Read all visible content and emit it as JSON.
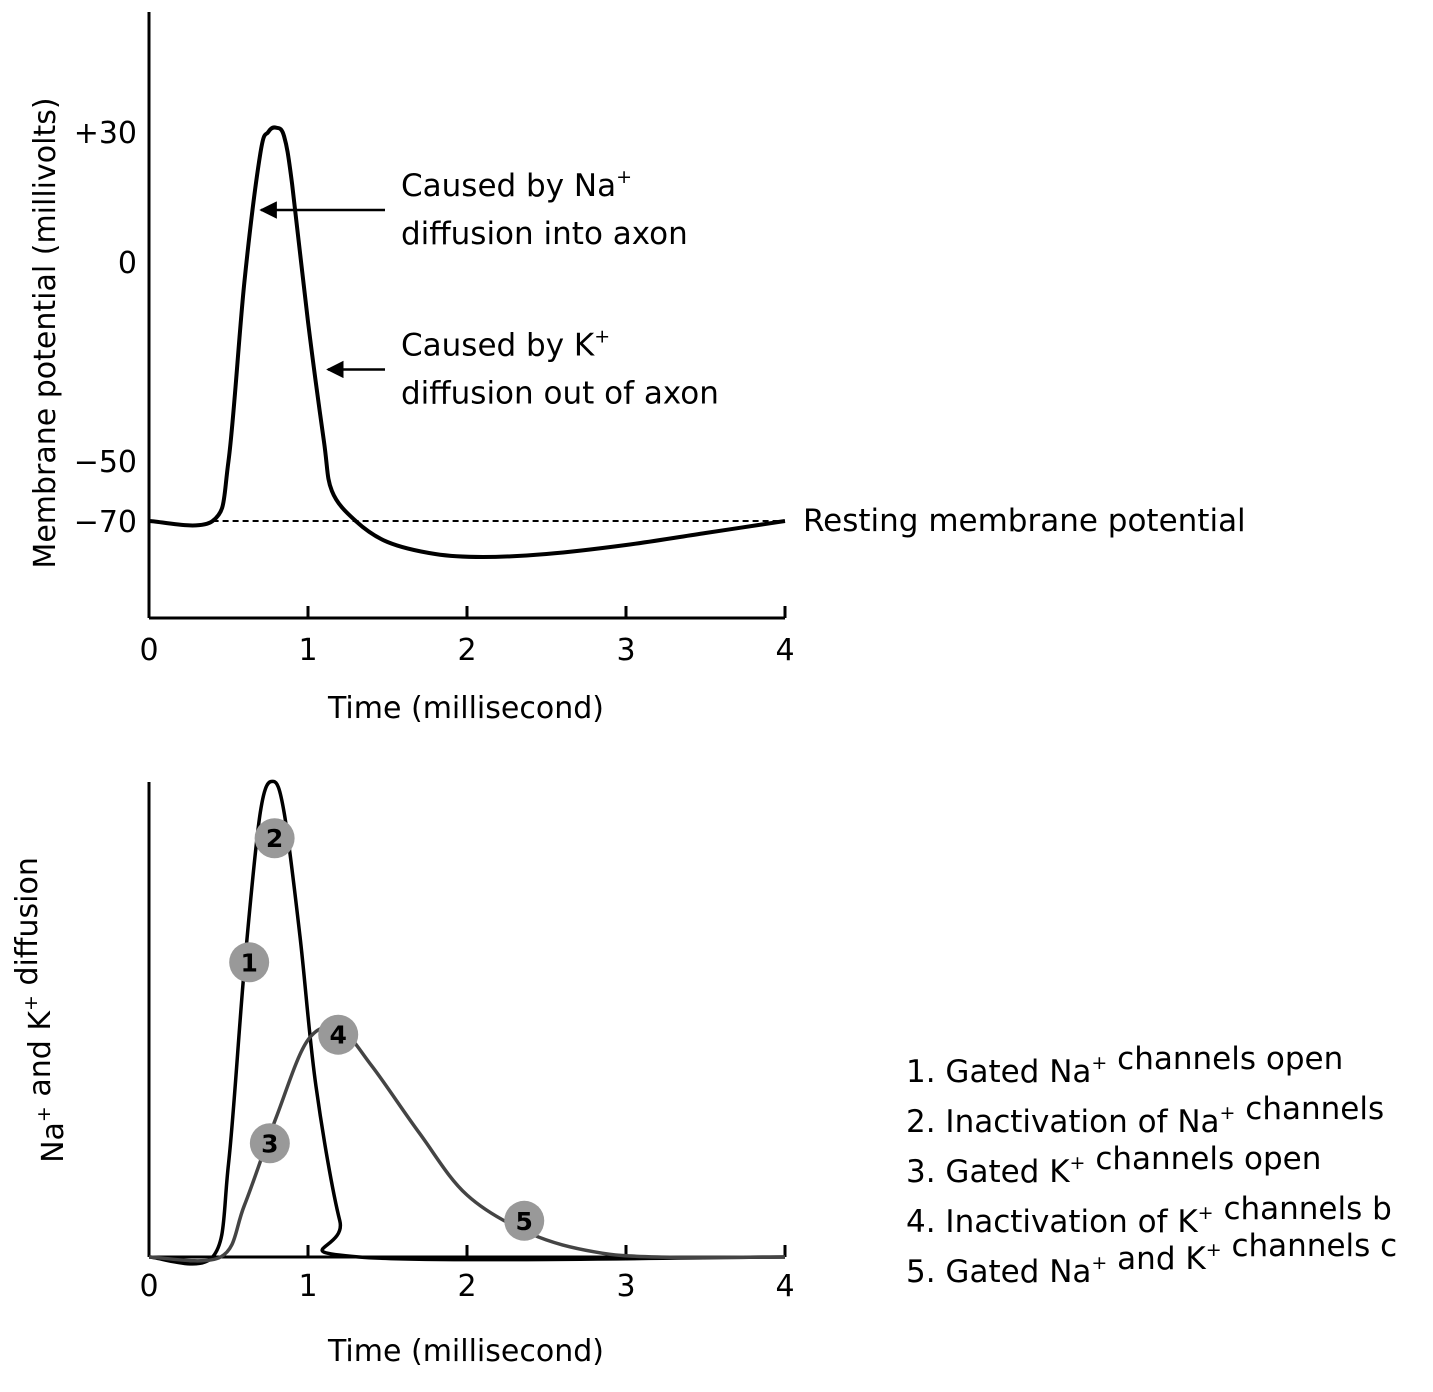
{
  "chart_data": [
    {
      "type": "line",
      "xlabel": "Time (millisecond)",
      "ylabel": "Membrane potential (millivolts)",
      "x_ticks": [
        "0",
        "1",
        "2",
        "3",
        "4"
      ],
      "y_ticks": [
        "+30",
        "0",
        "−50",
        "−70"
      ],
      "xlim": [
        0,
        4
      ],
      "ylim": [
        -95,
        60
      ],
      "grid": false,
      "series": [
        {
          "x": [
            0,
            0.4,
            0.5,
            0.6,
            0.7,
            0.75,
            0.8,
            0.85,
            0.9,
            1.0,
            1.1,
            1.15,
            1.3,
            1.5,
            1.8,
            2.1,
            2.5,
            3.0,
            3.5,
            4.0
          ],
          "y": [
            -70,
            -70,
            -50,
            -5,
            25,
            30,
            31,
            29,
            18,
            -15,
            -45,
            -60,
            -70,
            -77,
            -81,
            -82,
            -81,
            -78,
            -74,
            -70
          ]
        }
      ],
      "reference_lines": [
        {
          "y": -70,
          "style": "dashed",
          "label": "Resting membrane potential"
        }
      ],
      "annotations": [
        {
          "line1": "Caused by Na",
          "sup": "+",
          "line2": "diffusion into axon",
          "x": 0.68,
          "y": 12
        },
        {
          "line1": "Caused by K",
          "sup": "+",
          "line2": "diffusion out of axon",
          "x": 1.1,
          "y": -27
        }
      ]
    },
    {
      "type": "line",
      "xlabel": "Time (millisecond)",
      "ylabel_parts": [
        "Na",
        "+",
        " and K",
        "+",
        " diffusion"
      ],
      "x_ticks": [
        "0",
        "1",
        "2",
        "3",
        "4"
      ],
      "xlim": [
        0,
        4
      ],
      "ylim": [
        0,
        1
      ],
      "grid": false,
      "series": [
        {
          "name": "Na+",
          "color": "#000000",
          "x": [
            0,
            0.4,
            0.5,
            0.6,
            0.7,
            0.78,
            0.85,
            0.95,
            1.05,
            1.2,
            1.32,
            4.0
          ],
          "y": [
            0,
            0,
            0.18,
            0.56,
            0.86,
            0.92,
            0.86,
            0.62,
            0.33,
            0.07,
            0,
            0
          ]
        },
        {
          "name": "K+",
          "color": "#444444",
          "x": [
            0,
            0.45,
            0.6,
            0.8,
            1.0,
            1.2,
            1.4,
            1.7,
            2.0,
            2.4,
            2.8,
            3.2,
            4.0
          ],
          "y": [
            0,
            0,
            0.1,
            0.27,
            0.42,
            0.44,
            0.37,
            0.24,
            0.12,
            0.045,
            0.01,
            0,
            0
          ]
        }
      ],
      "markers": [
        {
          "label": "1",
          "x": 0.63,
          "y": 0.57
        },
        {
          "label": "2",
          "x": 0.79,
          "y": 0.81
        },
        {
          "label": "3",
          "x": 0.76,
          "y": 0.22
        },
        {
          "label": "4",
          "x": 1.19,
          "y": 0.43
        },
        {
          "label": "5",
          "x": 2.36,
          "y": 0.07
        }
      ],
      "marker_color": "#999999",
      "legend": [
        {
          "parts": [
            "1. Gated Na",
            "+",
            " channels open"
          ]
        },
        {
          "parts": [
            "2. Inactivation of Na",
            "+",
            " channels"
          ]
        },
        {
          "parts": [
            "3. Gated K",
            "+",
            " channels open"
          ]
        },
        {
          "parts": [
            "4. Inactivation of K",
            "+",
            " channels b"
          ]
        },
        {
          "parts": [
            "5. Gated Na",
            "+",
            " and K",
            "+",
            " channels c"
          ]
        }
      ]
    }
  ]
}
